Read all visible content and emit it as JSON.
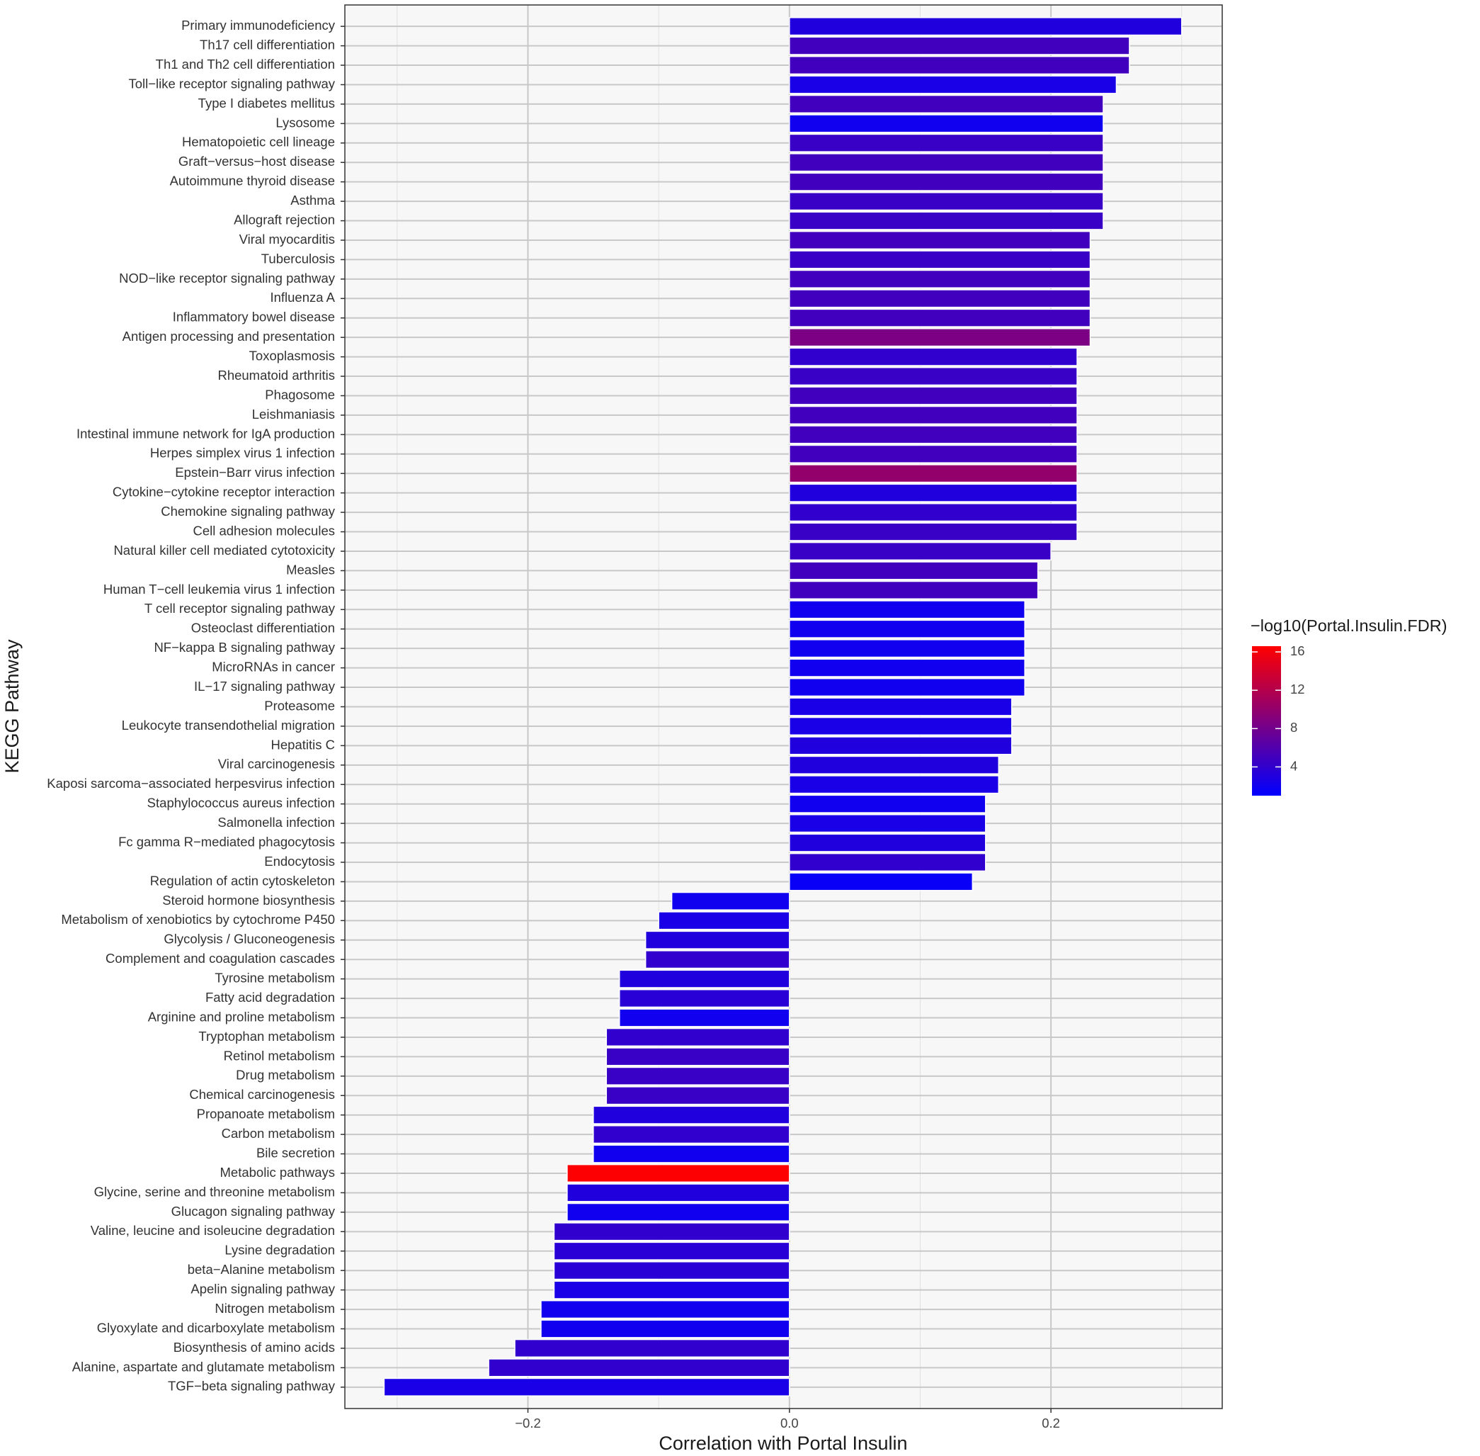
{
  "chart_data": {
    "type": "bar",
    "orientation": "horizontal",
    "x_label": "Correlation with Portal Insulin",
    "y_label": "KEGG Pathway",
    "categories": [
      "Primary immunodeficiency",
      "Th17 cell differentiation",
      "Th1 and Th2 cell differentiation",
      "Toll−like receptor signaling pathway",
      "Type I diabetes mellitus",
      "Lysosome",
      "Hematopoietic cell lineage",
      "Graft−versus−host disease",
      "Autoimmune thyroid disease",
      "Asthma",
      "Allograft rejection",
      "Viral myocarditis",
      "Tuberculosis",
      "NOD−like receptor signaling pathway",
      "Influenza A",
      "Inflammatory bowel disease",
      "Antigen processing and presentation",
      "Toxoplasmosis",
      "Rheumatoid arthritis",
      "Phagosome",
      "Leishmaniasis",
      "Intestinal immune network for IgA production",
      "Herpes simplex virus 1 infection",
      "Epstein−Barr virus infection",
      "Cytokine−cytokine receptor interaction",
      "Chemokine signaling pathway",
      "Cell adhesion molecules",
      "Natural killer cell mediated cytotoxicity",
      "Measles",
      "Human T−cell leukemia virus 1 infection",
      "T cell receptor signaling pathway",
      "Osteoclast differentiation",
      "NF−kappa B signaling pathway",
      "MicroRNAs in cancer",
      "IL−17 signaling pathway",
      "Proteasome",
      "Leukocyte transendothelial migration",
      "Hepatitis C",
      "Viral carcinogenesis",
      "Kaposi sarcoma−associated herpesvirus infection",
      "Staphylococcus aureus infection",
      "Salmonella infection",
      "Fc gamma R−mediated phagocytosis",
      "Endocytosis",
      "Regulation of actin cytoskeleton",
      "Steroid hormone biosynthesis",
      "Metabolism of xenobiotics by cytochrome P450",
      "Glycolysis / Gluconeogenesis",
      "Complement and coagulation cascades",
      "Tyrosine metabolism",
      "Fatty acid degradation",
      "Arginine and proline metabolism",
      "Tryptophan metabolism",
      "Retinol metabolism",
      "Drug metabolism",
      "Chemical carcinogenesis",
      "Propanoate metabolism",
      "Carbon metabolism",
      "Bile secretion",
      "Metabolic pathways",
      "Glycine, serine and threonine metabolism",
      "Glucagon signaling pathway",
      "Valine, leucine and isoleucine degradation",
      "Lysine degradation",
      "beta−Alanine metabolism",
      "Apelin signaling pathway",
      "Nitrogen metabolism",
      "Glyoxylate and dicarboxylate metabolism",
      "Biosynthesis of amino acids",
      "Alanine, aspartate and glutamate metabolism",
      "TGF−beta signaling pathway"
    ],
    "values": [
      0.3,
      0.26,
      0.26,
      0.25,
      0.24,
      0.24,
      0.24,
      0.24,
      0.24,
      0.24,
      0.24,
      0.23,
      0.23,
      0.23,
      0.23,
      0.23,
      0.23,
      0.22,
      0.22,
      0.22,
      0.22,
      0.22,
      0.22,
      0.22,
      0.22,
      0.22,
      0.22,
      0.2,
      0.19,
      0.19,
      0.18,
      0.18,
      0.18,
      0.18,
      0.18,
      0.17,
      0.17,
      0.17,
      0.16,
      0.16,
      0.15,
      0.15,
      0.15,
      0.15,
      0.14,
      -0.09,
      -0.1,
      -0.11,
      -0.11,
      -0.13,
      -0.13,
      -0.13,
      -0.14,
      -0.14,
      -0.14,
      -0.14,
      -0.15,
      -0.15,
      -0.15,
      -0.17,
      -0.17,
      -0.17,
      -0.18,
      -0.18,
      -0.18,
      -0.18,
      -0.19,
      -0.19,
      -0.21,
      -0.23,
      -0.31
    ],
    "color_values": [
      3,
      5,
      5,
      2.5,
      5,
      2,
      4.5,
      5,
      5,
      4.5,
      4.5,
      5,
      4.5,
      5,
      5,
      5,
      8.5,
      4,
      4.5,
      5,
      5,
      5,
      5,
      10,
      3,
      4,
      4.5,
      4.5,
      5,
      5,
      2,
      2,
      2,
      2,
      2,
      2.5,
      2.5,
      3,
      3,
      2.5,
      2,
      2.5,
      3,
      4,
      1.5,
      2,
      2.5,
      3,
      4,
      3,
      3.5,
      2,
      4,
      4.5,
      4.5,
      4.5,
      3,
      4,
      2,
      16.5,
      3,
      2,
      4,
      3.5,
      3.5,
      2.5,
      2,
      2,
      4,
      4,
      2.5
    ],
    "xlim": [
      -0.34,
      0.331
    ],
    "xticks": [
      {
        "value": -0.2,
        "label": "−0.2"
      },
      {
        "value": 0.0,
        "label": "0.0"
      },
      {
        "value": 0.2,
        "label": "0.2"
      }
    ],
    "minor_xticks": [
      -0.3,
      -0.1,
      0.1,
      0.3
    ],
    "grid": true,
    "colorscale": {
      "title": "−log10(Portal.Insulin.FDR)",
      "low": "#0000ff",
      "high": "#ff0000",
      "lim": [
        1,
        16.6
      ],
      "ticks": [
        4,
        8,
        12,
        16
      ]
    }
  }
}
